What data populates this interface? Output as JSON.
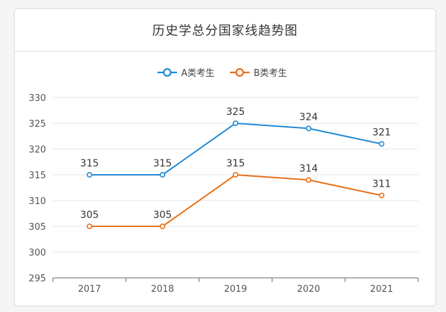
{
  "chart_data": {
    "type": "line",
    "title": "历史学总分国家线趋势图",
    "categories": [
      "2017",
      "2018",
      "2019",
      "2020",
      "2021"
    ],
    "series": [
      {
        "name": "A类考生",
        "color": "#1e88d6",
        "values": [
          315,
          315,
          325,
          324,
          321
        ]
      },
      {
        "name": "B类考生",
        "color": "#e86e16",
        "values": [
          305,
          305,
          315,
          314,
          311
        ]
      }
    ],
    "ylim": [
      295,
      330
    ],
    "yticks": [
      295,
      300,
      305,
      310,
      315,
      320,
      325,
      330
    ],
    "grid": true,
    "legend_position": "top"
  }
}
